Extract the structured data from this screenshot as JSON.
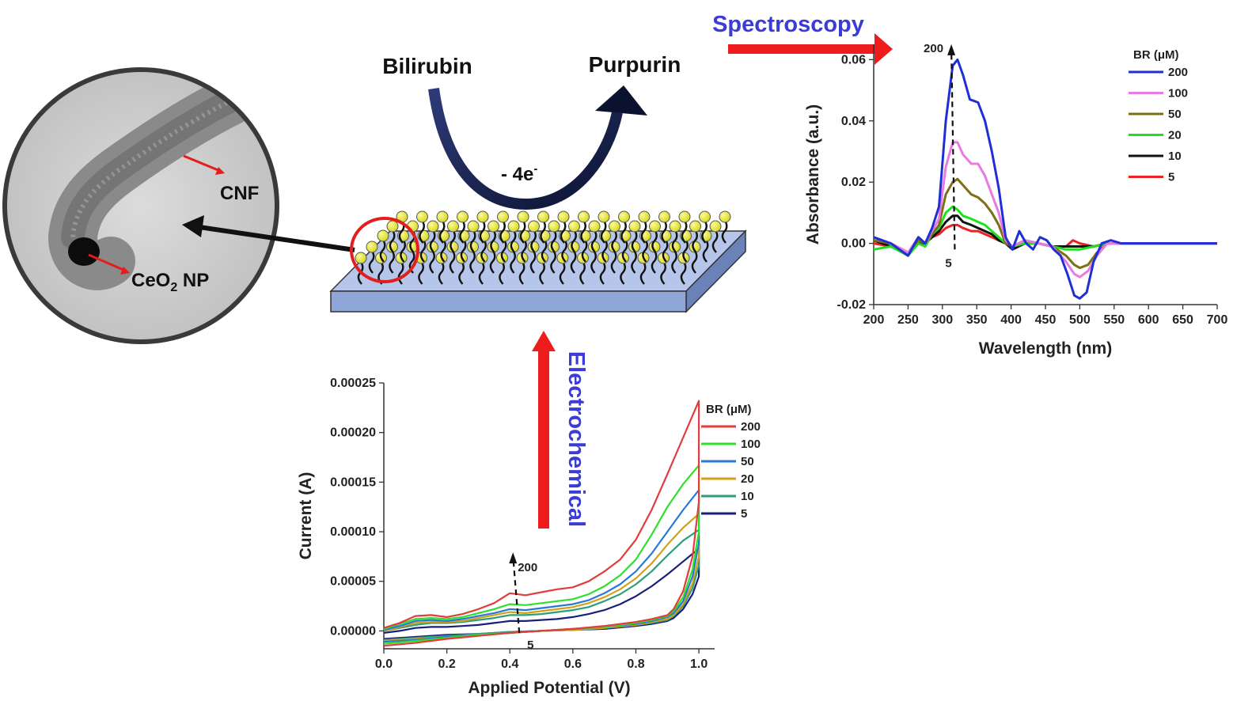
{
  "reaction": {
    "reactant": "Bilirubin",
    "product": "Purpurin",
    "electrons": "- 4e",
    "electrons_sup": "-"
  },
  "micrograph": {
    "label_fiber": "CNF",
    "label_particle_main": "CeO",
    "label_particle_sub": "2",
    "label_particle_tail": " NP"
  },
  "methods": {
    "spectroscopy": "Spectroscopy",
    "electrochemical": "Electrochemical"
  },
  "accent_colors": {
    "method_text": "#3b3bd8",
    "arrow_red": "#ee1c1c",
    "substrate": "#8fa6d8",
    "sphere": "#e8e830"
  },
  "chart_data": [
    {
      "type": "line",
      "id": "spectroscopy",
      "xlabel": "Wavelength (nm)",
      "ylabel": "Absorbance (a.u.)",
      "xlim": [
        200,
        700
      ],
      "ylim": [
        -0.02,
        0.065
      ],
      "xticks": [
        200,
        250,
        300,
        350,
        400,
        450,
        500,
        550,
        600,
        650,
        700
      ],
      "yticks": [
        -0.02,
        0.0,
        0.02,
        0.04,
        0.06
      ],
      "ytick_labels": [
        "-0.02",
        "0.00",
        "0.02",
        "0.04",
        "0.06"
      ],
      "grid": false,
      "legend_title": "BR (μM)",
      "legend_position": "top-right",
      "annotation_top": "200",
      "annotation_bottom": "5",
      "series": [
        {
          "name": "200",
          "color": "#1f2fd6",
          "x": [
            200,
            225,
            250,
            265,
            275,
            285,
            295,
            305,
            315,
            322,
            330,
            340,
            352,
            362,
            372,
            382,
            392,
            402,
            412,
            422,
            432,
            442,
            452,
            462,
            472,
            482,
            492,
            500,
            510,
            520,
            532,
            545,
            560,
            600,
            700
          ],
          "y": [
            0.002,
            0.0,
            -0.004,
            0.002,
            0.0,
            0.005,
            0.012,
            0.04,
            0.058,
            0.06,
            0.055,
            0.047,
            0.046,
            0.04,
            0.03,
            0.018,
            0.002,
            -0.002,
            0.004,
            0.0,
            -0.002,
            0.002,
            0.001,
            -0.002,
            -0.004,
            -0.01,
            -0.017,
            -0.018,
            -0.016,
            -0.006,
            0.0,
            0.001,
            0.0,
            0.0,
            0.0
          ]
        },
        {
          "name": "100",
          "color": "#e979e3",
          "x": [
            200,
            225,
            250,
            265,
            275,
            285,
            295,
            305,
            315,
            322,
            330,
            342,
            352,
            362,
            372,
            382,
            392,
            402,
            420,
            440,
            460,
            480,
            492,
            500,
            512,
            525,
            540,
            555,
            600,
            700
          ],
          "y": [
            0.002,
            0.0,
            -0.003,
            0.002,
            0.0,
            0.004,
            0.008,
            0.025,
            0.033,
            0.033,
            0.029,
            0.026,
            0.026,
            0.022,
            0.016,
            0.01,
            0.001,
            -0.001,
            0.001,
            0.0,
            -0.001,
            -0.006,
            -0.01,
            -0.011,
            -0.009,
            -0.004,
            0.0,
            0.0,
            0.0,
            0.0
          ]
        },
        {
          "name": "50",
          "color": "#7d6f14",
          "x": [
            200,
            225,
            250,
            265,
            275,
            285,
            295,
            305,
            315,
            322,
            330,
            342,
            352,
            362,
            372,
            382,
            392,
            402,
            420,
            440,
            460,
            480,
            492,
            500,
            512,
            525,
            540,
            555,
            600,
            700
          ],
          "y": [
            0.001,
            0.0,
            -0.003,
            0.001,
            0.0,
            0.003,
            0.006,
            0.016,
            0.02,
            0.021,
            0.019,
            0.016,
            0.015,
            0.013,
            0.01,
            0.006,
            0.0,
            -0.001,
            0.001,
            0.0,
            -0.001,
            -0.004,
            -0.007,
            -0.008,
            -0.007,
            -0.003,
            0.0,
            0.0,
            0.0,
            0.0
          ]
        },
        {
          "name": "20",
          "color": "#1ee11e",
          "x": [
            200,
            225,
            250,
            265,
            275,
            285,
            295,
            305,
            315,
            322,
            330,
            342,
            352,
            362,
            372,
            382,
            392,
            402,
            420,
            440,
            460,
            480,
            500,
            520,
            540,
            600,
            700
          ],
          "y": [
            -0.002,
            -0.001,
            -0.004,
            0.0,
            -0.001,
            0.003,
            0.005,
            0.01,
            0.012,
            0.011,
            0.009,
            0.008,
            0.007,
            0.006,
            0.004,
            0.002,
            0.0,
            -0.001,
            0.0,
            0.0,
            -0.001,
            -0.002,
            -0.002,
            -0.001,
            0.0,
            0.0,
            0.0
          ]
        },
        {
          "name": "10",
          "color": "#111111",
          "x": [
            200,
            225,
            250,
            265,
            275,
            285,
            295,
            305,
            315,
            322,
            330,
            342,
            352,
            362,
            372,
            382,
            392,
            402,
            420,
            440,
            460,
            480,
            500,
            520,
            540,
            600,
            700
          ],
          "y": [
            0.001,
            -0.001,
            -0.003,
            0.0,
            0.0,
            0.002,
            0.004,
            0.007,
            0.009,
            0.009,
            0.007,
            0.006,
            0.005,
            0.004,
            0.003,
            0.001,
            0.0,
            -0.002,
            0.0,
            0.0,
            -0.001,
            -0.001,
            -0.001,
            -0.001,
            0.0,
            0.0,
            0.0
          ]
        },
        {
          "name": "5",
          "color": "#ee2222",
          "x": [
            200,
            225,
            250,
            265,
            275,
            285,
            295,
            305,
            315,
            322,
            330,
            342,
            352,
            362,
            372,
            382,
            392,
            402,
            420,
            440,
            460,
            480,
            490,
            500,
            520,
            540,
            600,
            700
          ],
          "y": [
            0.0,
            -0.001,
            -0.003,
            0.0,
            0.0,
            0.002,
            0.003,
            0.005,
            0.006,
            0.006,
            0.005,
            0.004,
            0.004,
            0.003,
            0.002,
            0.001,
            0.0,
            -0.001,
            0.0,
            0.0,
            -0.001,
            -0.001,
            0.001,
            0.0,
            -0.001,
            0.0,
            0.0,
            0.0
          ]
        }
      ]
    },
    {
      "type": "line",
      "id": "electrochemical",
      "xlabel": "Applied Potential (V)",
      "ylabel": "Current (A)",
      "xlim": [
        0.0,
        1.05
      ],
      "ylim": [
        -1.8e-05,
        0.00025
      ],
      "xticks": [
        0.0,
        0.2,
        0.4,
        0.6,
        0.8,
        1.0
      ],
      "xtick_labels": [
        "0.0",
        "0.2",
        "0.4",
        "0.6",
        "0.8",
        "1.0"
      ],
      "yticks": [
        0.0,
        5e-05,
        0.0001,
        0.00015,
        0.0002,
        0.00025
      ],
      "ytick_labels": [
        "0.00000",
        "0.00005",
        "0.00010",
        "0.00015",
        "0.00020",
        "0.00025"
      ],
      "grid": false,
      "legend_title": "BR (μM)",
      "legend_position": "top-right",
      "annotation_top": "200",
      "annotation_bottom": "5",
      "series": [
        {
          "name": "200",
          "color": "#e23c3c",
          "x": [
            0.0,
            0.05,
            0.1,
            0.15,
            0.2,
            0.25,
            0.3,
            0.35,
            0.4,
            0.45,
            0.5,
            0.55,
            0.6,
            0.65,
            0.7,
            0.75,
            0.8,
            0.85,
            0.9,
            0.95,
            1.0,
            1.0,
            0.98,
            0.95,
            0.92,
            0.9,
            0.85,
            0.8,
            0.7,
            0.6,
            0.5,
            0.4,
            0.3,
            0.2,
            0.1,
            0.0
          ],
          "y": [
            3e-06,
            8e-06,
            1.5e-05,
            1.6e-05,
            1.4e-05,
            1.7e-05,
            2.2e-05,
            2.8e-05,
            3.8e-05,
            3.6e-05,
            3.9e-05,
            4.2e-05,
            4.4e-05,
            5e-05,
            6e-05,
            7.2e-05,
            9.2e-05,
            0.000122,
            0.000158,
            0.000195,
            0.000232,
            0.00013,
            7.5e-05,
            4e-05,
            2.2e-05,
            1.6e-05,
            1.2e-05,
            9e-06,
            5e-06,
            2e-06,
            0.0,
            -2e-06,
            -5e-06,
            -8e-06,
            -1.2e-05,
            -1.5e-05
          ]
        },
        {
          "name": "100",
          "color": "#2ee02e",
          "x": [
            0.0,
            0.05,
            0.1,
            0.15,
            0.2,
            0.25,
            0.3,
            0.35,
            0.4,
            0.45,
            0.5,
            0.55,
            0.6,
            0.65,
            0.7,
            0.75,
            0.8,
            0.85,
            0.9,
            0.95,
            1.0,
            1.0,
            0.98,
            0.95,
            0.92,
            0.9,
            0.85,
            0.8,
            0.7,
            0.6,
            0.5,
            0.4,
            0.3,
            0.2,
            0.1,
            0.0
          ],
          "y": [
            2e-06,
            7e-06,
            1.2e-05,
            1.3e-05,
            1.2e-05,
            1.4e-05,
            1.8e-05,
            2.2e-05,
            2.7e-05,
            2.6e-05,
            2.8e-05,
            3e-05,
            3.2e-05,
            3.7e-05,
            4.5e-05,
            5.6e-05,
            7.2e-05,
            9.7e-05,
            0.000125,
            0.000148,
            0.000167,
            0.0001,
            6.2e-05,
            3.4e-05,
            2e-05,
            1.5e-05,
            1.1e-05,
            8e-06,
            4e-06,
            2e-06,
            0.0,
            -2e-06,
            -4e-06,
            -7e-06,
            -1e-05,
            -1.3e-05
          ]
        },
        {
          "name": "50",
          "color": "#2a78d6",
          "x": [
            0.0,
            0.05,
            0.1,
            0.15,
            0.2,
            0.25,
            0.3,
            0.35,
            0.4,
            0.45,
            0.5,
            0.55,
            0.6,
            0.65,
            0.7,
            0.75,
            0.8,
            0.85,
            0.9,
            0.95,
            1.0,
            1.0,
            0.98,
            0.95,
            0.92,
            0.9,
            0.85,
            0.8,
            0.7,
            0.6,
            0.5,
            0.4,
            0.3,
            0.2,
            0.1,
            0.0
          ],
          "y": [
            1e-06,
            5e-06,
            1e-05,
            1.1e-05,
            1e-05,
            1.2e-05,
            1.5e-05,
            1.8e-05,
            2.2e-05,
            2.1e-05,
            2.3e-05,
            2.5e-05,
            2.7e-05,
            3.1e-05,
            3.8e-05,
            4.7e-05,
            6e-05,
            7.8e-05,
            0.0001,
            0.000122,
            0.000142,
            8.8e-05,
            5.5e-05,
            3e-05,
            1.8e-05,
            1.4e-05,
            1e-05,
            7e-06,
            4e-06,
            2e-06,
            0.0,
            -2e-06,
            -4e-06,
            -6e-06,
            -9e-06,
            -1.1e-05
          ]
        },
        {
          "name": "20",
          "color": "#d4a017",
          "x": [
            0.0,
            0.05,
            0.1,
            0.15,
            0.2,
            0.25,
            0.3,
            0.35,
            0.4,
            0.45,
            0.5,
            0.55,
            0.6,
            0.65,
            0.7,
            0.75,
            0.8,
            0.85,
            0.9,
            0.95,
            1.0,
            1.0,
            0.98,
            0.95,
            0.92,
            0.9,
            0.85,
            0.8,
            0.7,
            0.6,
            0.5,
            0.4,
            0.3,
            0.2,
            0.1,
            0.0
          ],
          "y": [
            0.0,
            4e-06,
            8e-06,
            9e-06,
            9e-06,
            1e-05,
            1.3e-05,
            1.6e-05,
            1.9e-05,
            1.8e-05,
            2e-05,
            2.2e-05,
            2.4e-05,
            2.8e-05,
            3.4e-05,
            4.2e-05,
            5.3e-05,
            6.8e-05,
            8.7e-05,
            0.000104,
            0.000118,
            7.5e-05,
            4.8e-05,
            2.7e-05,
            1.6e-05,
            1.2e-05,
            9e-06,
            6e-06,
            3e-06,
            1e-06,
            0.0,
            -2e-06,
            -4e-06,
            -6e-06,
            -8e-06,
            -1e-05
          ]
        },
        {
          "name": "10",
          "color": "#2e9e78",
          "x": [
            0.0,
            0.05,
            0.1,
            0.15,
            0.2,
            0.25,
            0.3,
            0.35,
            0.4,
            0.45,
            0.5,
            0.55,
            0.6,
            0.65,
            0.7,
            0.75,
            0.8,
            0.85,
            0.9,
            0.95,
            1.0,
            1.0,
            0.98,
            0.95,
            0.92,
            0.9,
            0.85,
            0.8,
            0.7,
            0.6,
            0.5,
            0.4,
            0.3,
            0.2,
            0.1,
            0.0
          ],
          "y": [
            0.0,
            3e-06,
            6e-06,
            8e-06,
            8e-06,
            9e-06,
            1.1e-05,
            1.3e-05,
            1.6e-05,
            1.6e-05,
            1.7e-05,
            1.9e-05,
            2.1e-05,
            2.4e-05,
            3e-05,
            3.7e-05,
            4.7e-05,
            6e-05,
            7.6e-05,
            9.1e-05,
            0.000102,
            6.6e-05,
            4.3e-05,
            2.5e-05,
            1.5e-05,
            1.1e-05,
            8e-06,
            6e-06,
            3e-06,
            1e-06,
            0.0,
            -1e-06,
            -3e-06,
            -5e-06,
            -7e-06,
            -9e-06
          ]
        },
        {
          "name": "5",
          "color": "#1a1f7a",
          "x": [
            0.0,
            0.05,
            0.1,
            0.15,
            0.2,
            0.25,
            0.3,
            0.35,
            0.4,
            0.45,
            0.5,
            0.55,
            0.6,
            0.65,
            0.7,
            0.75,
            0.8,
            0.85,
            0.9,
            0.95,
            1.0,
            1.0,
            0.98,
            0.95,
            0.92,
            0.9,
            0.85,
            0.8,
            0.7,
            0.6,
            0.5,
            0.4,
            0.3,
            0.2,
            0.1,
            0.0
          ],
          "y": [
            -2e-06,
            0.0,
            3e-06,
            4e-06,
            4e-06,
            5e-06,
            6e-06,
            8e-06,
            1e-05,
            1e-05,
            1.1e-05,
            1.2e-05,
            1.4e-05,
            1.7e-05,
            2.1e-05,
            2.7e-05,
            3.5e-05,
            4.5e-05,
            5.7e-05,
            7e-05,
            8.3e-05,
            5.5e-05,
            3.7e-05,
            2.2e-05,
            1.3e-05,
            1e-05,
            7e-06,
            5e-06,
            2e-06,
            1e-06,
            0.0,
            -1e-06,
            -3e-06,
            -4e-06,
            -6e-06,
            -8e-06
          ]
        }
      ]
    }
  ]
}
